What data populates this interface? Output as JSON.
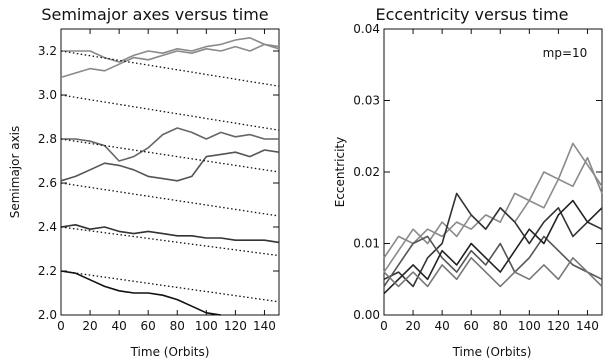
{
  "chart_data": [
    {
      "type": "line",
      "title": "Semimajor axes versus time",
      "xlabel": "Time (Orbits)",
      "ylabel": "Semimajor axis",
      "xlim": [
        0,
        150
      ],
      "ylim": [
        2.0,
        3.3
      ],
      "xticks": [
        "0",
        "20",
        "40",
        "60",
        "80",
        "100",
        "120",
        "140"
      ],
      "yticks": [
        "2.0",
        "2.2",
        "2.4",
        "2.6",
        "2.8",
        "3.0",
        "3.2"
      ],
      "series": [
        {
          "color": "#8a8a8a",
          "style": "solid",
          "x": [
            0,
            10,
            20,
            30,
            40,
            50,
            60,
            70,
            80,
            90,
            100,
            110,
            120,
            130,
            140,
            150
          ],
          "y": [
            3.2,
            3.2,
            3.2,
            3.17,
            3.15,
            3.18,
            3.2,
            3.19,
            3.21,
            3.2,
            3.22,
            3.23,
            3.25,
            3.26,
            3.23,
            3.22
          ]
        },
        {
          "color": "#8a8a8a",
          "style": "solid",
          "x": [
            0,
            10,
            20,
            30,
            40,
            50,
            60,
            70,
            80,
            90,
            100,
            110,
            120,
            130,
            140,
            150
          ],
          "y": [
            3.08,
            3.1,
            3.12,
            3.11,
            3.14,
            3.17,
            3.16,
            3.18,
            3.2,
            3.19,
            3.21,
            3.2,
            3.22,
            3.2,
            3.23,
            3.21
          ]
        },
        {
          "color": "#666666",
          "style": "solid",
          "x": [
            0,
            10,
            20,
            30,
            40,
            50,
            60,
            70,
            80,
            90,
            100,
            110,
            120,
            130,
            140,
            150
          ],
          "y": [
            2.8,
            2.8,
            2.79,
            2.77,
            2.7,
            2.72,
            2.76,
            2.82,
            2.85,
            2.83,
            2.8,
            2.83,
            2.81,
            2.82,
            2.8,
            2.8
          ]
        },
        {
          "color": "#555555",
          "style": "solid",
          "x": [
            0,
            10,
            20,
            30,
            40,
            50,
            60,
            70,
            80,
            90,
            100,
            110,
            120,
            130,
            140,
            150
          ],
          "y": [
            2.61,
            2.63,
            2.66,
            2.69,
            2.68,
            2.66,
            2.63,
            2.62,
            2.61,
            2.63,
            2.72,
            2.73,
            2.74,
            2.72,
            2.75,
            2.74
          ]
        },
        {
          "color": "#333333",
          "style": "solid",
          "x": [
            0,
            10,
            20,
            30,
            40,
            50,
            60,
            70,
            80,
            90,
            100,
            110,
            120,
            130,
            140,
            150
          ],
          "y": [
            2.4,
            2.41,
            2.39,
            2.4,
            2.38,
            2.37,
            2.38,
            2.37,
            2.36,
            2.36,
            2.35,
            2.35,
            2.34,
            2.34,
            2.34,
            2.33
          ]
        },
        {
          "color": "#111111",
          "style": "solid",
          "x": [
            0,
            10,
            20,
            30,
            40,
            50,
            60,
            70,
            80,
            90,
            100,
            110
          ],
          "y": [
            2.2,
            2.19,
            2.16,
            2.13,
            2.11,
            2.1,
            2.1,
            2.09,
            2.07,
            2.04,
            2.01,
            2.0
          ]
        },
        {
          "color": "#111111",
          "style": "dotted",
          "x": [
            0,
            150
          ],
          "y": [
            3.2,
            3.04
          ]
        },
        {
          "color": "#111111",
          "style": "dotted",
          "x": [
            0,
            150
          ],
          "y": [
            3.0,
            2.84
          ]
        },
        {
          "color": "#111111",
          "style": "dotted",
          "x": [
            0,
            150
          ],
          "y": [
            2.8,
            2.65
          ]
        },
        {
          "color": "#111111",
          "style": "dotted",
          "x": [
            0,
            150
          ],
          "y": [
            2.6,
            2.45
          ]
        },
        {
          "color": "#111111",
          "style": "dotted",
          "x": [
            0,
            150
          ],
          "y": [
            2.4,
            2.27
          ]
        },
        {
          "color": "#111111",
          "style": "dotted",
          "x": [
            0,
            150
          ],
          "y": [
            2.2,
            2.06
          ]
        }
      ]
    },
    {
      "type": "line",
      "title": "Eccentricity versus time",
      "xlabel": "Time (Orbits)",
      "ylabel": "Eccentricity",
      "xlim": [
        0,
        150
      ],
      "ylim": [
        0.0,
        0.04
      ],
      "xticks": [
        "0",
        "20",
        "40",
        "60",
        "80",
        "100",
        "120",
        "140"
      ],
      "yticks": [
        "0.00",
        "0.01",
        "0.02",
        "0.03",
        "0.04"
      ],
      "annotation": "mp=10",
      "series": [
        {
          "color": "#8a8a8a",
          "x": [
            0,
            10,
            20,
            30,
            40,
            50,
            60,
            70,
            80,
            90,
            100,
            110,
            120,
            130,
            140,
            150
          ],
          "y": [
            0.008,
            0.011,
            0.01,
            0.012,
            0.011,
            0.013,
            0.012,
            0.014,
            0.013,
            0.017,
            0.016,
            0.02,
            0.019,
            0.024,
            0.021,
            0.018
          ]
        },
        {
          "color": "#8a8a8a",
          "x": [
            0,
            10,
            20,
            30,
            40,
            50,
            60,
            70,
            80,
            90,
            100,
            110,
            120,
            130,
            140,
            150
          ],
          "y": [
            0.006,
            0.009,
            0.012,
            0.01,
            0.013,
            0.011,
            0.014,
            0.012,
            0.015,
            0.013,
            0.016,
            0.015,
            0.019,
            0.018,
            0.022,
            0.017
          ]
        },
        {
          "color": "#333333",
          "x": [
            0,
            10,
            20,
            30,
            40,
            50,
            60,
            70,
            80,
            90,
            100,
            110,
            120,
            130,
            140,
            150
          ],
          "y": [
            0.005,
            0.006,
            0.004,
            0.008,
            0.01,
            0.017,
            0.014,
            0.012,
            0.015,
            0.013,
            0.01,
            0.013,
            0.015,
            0.011,
            0.013,
            0.012
          ]
        },
        {
          "color": "#555555",
          "x": [
            0,
            10,
            20,
            30,
            40,
            50,
            60,
            70,
            80,
            90,
            100,
            110,
            120,
            130,
            140,
            150
          ],
          "y": [
            0.004,
            0.007,
            0.01,
            0.011,
            0.008,
            0.006,
            0.009,
            0.007,
            0.01,
            0.006,
            0.008,
            0.011,
            0.009,
            0.007,
            0.006,
            0.005
          ]
        },
        {
          "color": "#222222",
          "x": [
            0,
            10,
            20,
            30,
            40,
            50,
            60,
            70,
            80,
            90,
            100,
            110,
            120,
            130,
            140,
            150
          ],
          "y": [
            0.003,
            0.005,
            0.007,
            0.005,
            0.009,
            0.007,
            0.01,
            0.008,
            0.006,
            0.009,
            0.012,
            0.01,
            0.014,
            0.016,
            0.013,
            0.015
          ]
        },
        {
          "color": "#777777",
          "x": [
            0,
            10,
            20,
            30,
            40,
            50,
            60,
            70,
            80,
            90,
            100,
            110,
            120,
            130,
            140,
            150
          ],
          "y": [
            0.006,
            0.004,
            0.006,
            0.004,
            0.007,
            0.005,
            0.008,
            0.006,
            0.004,
            0.006,
            0.005,
            0.007,
            0.005,
            0.008,
            0.006,
            0.004
          ]
        }
      ]
    }
  ]
}
